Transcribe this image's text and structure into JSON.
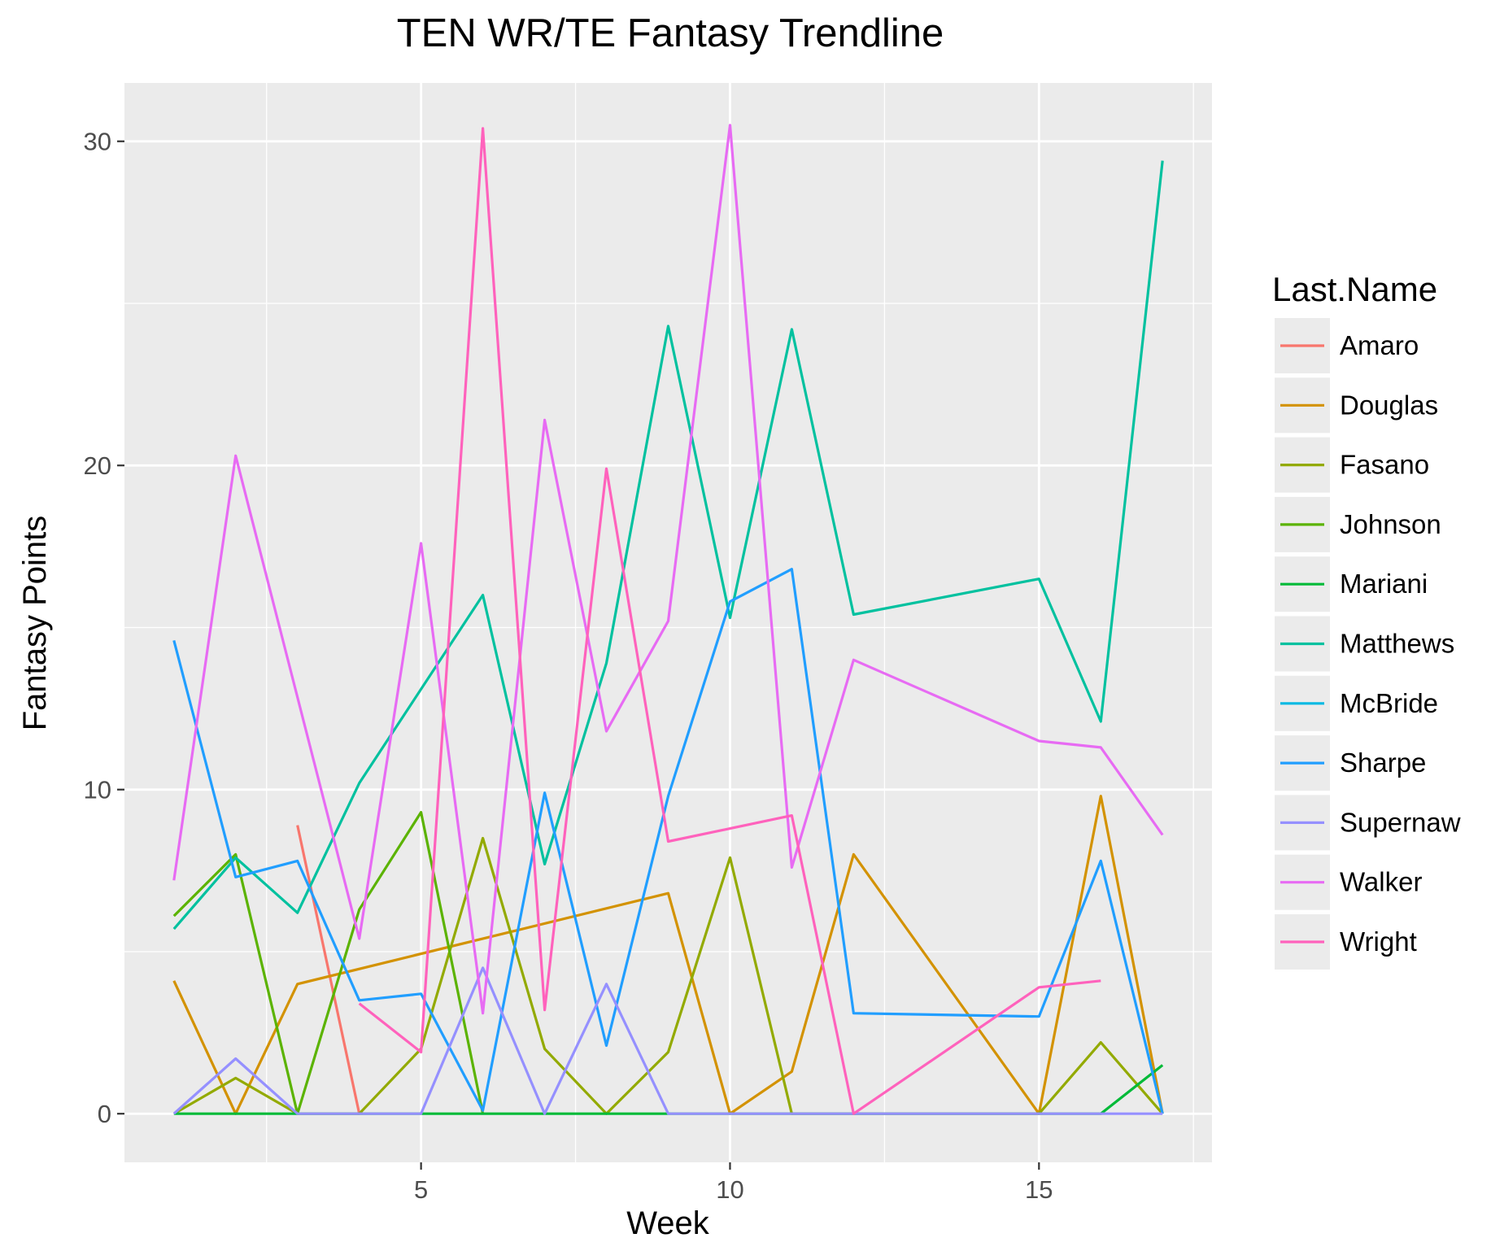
{
  "chart_data": {
    "type": "line",
    "title": "TEN WR/TE Fantasy Trendline",
    "xlabel": "Week",
    "ylabel": "Fantasy Points",
    "xlim": [
      0.2,
      17.8
    ],
    "ylim": [
      -1.5,
      31.8
    ],
    "x_ticks": [
      5,
      10,
      15
    ],
    "y_ticks": [
      0,
      10,
      20,
      30
    ],
    "grid": true,
    "legend_title": "Last.Name",
    "legend_position": "right",
    "series": [
      {
        "name": "Amaro",
        "color": "#F8766D",
        "points": [
          [
            3,
            8.9
          ],
          [
            4,
            0
          ]
        ]
      },
      {
        "name": "Douglas",
        "color": "#D39200",
        "points": [
          [
            1,
            4.1
          ],
          [
            2,
            0
          ],
          [
            3,
            4.0
          ],
          [
            9,
            6.8
          ],
          [
            10,
            0
          ],
          [
            11,
            1.3
          ],
          [
            12,
            8.0
          ],
          [
            15,
            0
          ],
          [
            16,
            9.8
          ],
          [
            17,
            0
          ]
        ]
      },
      {
        "name": "Fasano",
        "color": "#93AA00",
        "points": [
          [
            1,
            0
          ],
          [
            2,
            1.1
          ],
          [
            3,
            0
          ],
          [
            4,
            0
          ],
          [
            5,
            2.0
          ],
          [
            6,
            8.5
          ],
          [
            7,
            2.0
          ],
          [
            8,
            0
          ],
          [
            9,
            1.9
          ],
          [
            10,
            7.9
          ],
          [
            11,
            0
          ],
          [
            12,
            0
          ],
          [
            15,
            0
          ],
          [
            16,
            2.2
          ],
          [
            17,
            0
          ]
        ]
      },
      {
        "name": "Johnson",
        "color": "#5BB300",
        "points": [
          [
            1,
            6.1
          ],
          [
            2,
            8.0
          ],
          [
            3,
            0
          ],
          [
            4,
            6.3
          ],
          [
            5,
            9.3
          ],
          [
            6,
            0
          ]
        ]
      },
      {
        "name": "Mariani",
        "color": "#00BA38",
        "points": [
          [
            1,
            0
          ],
          [
            2,
            0
          ],
          [
            3,
            0
          ],
          [
            4,
            0
          ],
          [
            5,
            0
          ],
          [
            6,
            0
          ],
          [
            7,
            0
          ],
          [
            8,
            0
          ],
          [
            9,
            0
          ],
          [
            16,
            0
          ],
          [
            17,
            1.5
          ]
        ]
      },
      {
        "name": "Matthews",
        "color": "#00C19F",
        "points": [
          [
            1,
            5.7
          ],
          [
            2,
            7.9
          ],
          [
            3,
            6.2
          ],
          [
            4,
            10.2
          ],
          [
            6,
            16.0
          ],
          [
            7,
            7.7
          ],
          [
            8,
            13.9
          ],
          [
            9,
            24.3
          ],
          [
            10,
            15.3
          ],
          [
            11,
            24.2
          ],
          [
            12,
            15.4
          ],
          [
            15,
            16.5
          ],
          [
            16,
            12.1
          ],
          [
            17,
            29.4
          ]
        ]
      },
      {
        "name": "McBride",
        "color": "#00B9E3",
        "points": []
      },
      {
        "name": "Sharpe",
        "color": "#219EFF",
        "points": [
          [
            1,
            14.6
          ],
          [
            2,
            7.3
          ],
          [
            3,
            7.8
          ],
          [
            4,
            3.5
          ],
          [
            5,
            3.7
          ],
          [
            6,
            0.1
          ],
          [
            7,
            9.9
          ],
          [
            8,
            2.1
          ],
          [
            9,
            9.8
          ],
          [
            10,
            15.8
          ],
          [
            11,
            16.8
          ],
          [
            12,
            3.1
          ],
          [
            15,
            3.0
          ],
          [
            16,
            7.8
          ],
          [
            17,
            0
          ]
        ]
      },
      {
        "name": "Supernaw",
        "color": "#9590FF",
        "points": [
          [
            1,
            0
          ],
          [
            2,
            1.7
          ],
          [
            3,
            0
          ],
          [
            4,
            0
          ],
          [
            5,
            0
          ],
          [
            6,
            4.5
          ],
          [
            7,
            0
          ],
          [
            8,
            4.0
          ],
          [
            9,
            0
          ],
          [
            10,
            0
          ],
          [
            11,
            0
          ],
          [
            12,
            0
          ],
          [
            15,
            0
          ],
          [
            16,
            0
          ],
          [
            17,
            0
          ]
        ]
      },
      {
        "name": "Walker",
        "color": "#E76BF3",
        "points": [
          [
            1,
            7.2
          ],
          [
            2,
            20.3
          ],
          [
            4,
            5.4
          ],
          [
            5,
            17.6
          ],
          [
            6,
            3.1
          ],
          [
            7,
            21.4
          ],
          [
            8,
            11.8
          ],
          [
            9,
            15.2
          ],
          [
            10,
            30.5
          ],
          [
            11,
            7.6
          ],
          [
            12,
            14.0
          ],
          [
            15,
            11.5
          ],
          [
            16,
            11.3
          ],
          [
            17,
            8.6
          ]
        ]
      },
      {
        "name": "Wright",
        "color": "#FF62BC",
        "points": [
          [
            4,
            3.4
          ],
          [
            5,
            1.9
          ],
          [
            6,
            30.4
          ],
          [
            7,
            3.2
          ],
          [
            8,
            19.9
          ],
          [
            9,
            8.4
          ],
          [
            11,
            9.2
          ],
          [
            12,
            0
          ],
          [
            15,
            3.9
          ],
          [
            16,
            4.1
          ]
        ]
      }
    ]
  }
}
